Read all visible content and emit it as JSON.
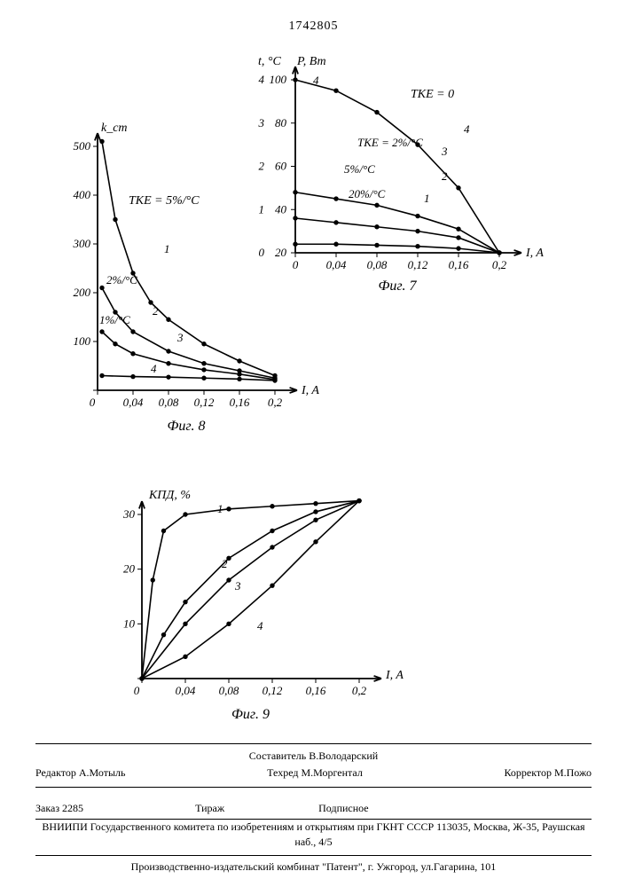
{
  "page_number": "1742805",
  "fig7": {
    "type": "line",
    "ylabel_left": "t, °C",
    "ylabel_right": "P, Вт",
    "xlabel": "I, A",
    "title": "Фиг. 7",
    "xlim": [
      0,
      0.2
    ],
    "ylim_left": [
      0,
      4
    ],
    "ylim_right": [
      20,
      100
    ],
    "xticks": [
      0,
      0.04,
      0.08,
      0.12,
      0.16,
      0.2
    ],
    "yticks_left": [
      "0",
      "1",
      "2",
      "3",
      "4"
    ],
    "yticks_right": [
      20,
      40,
      60,
      80,
      100
    ],
    "line_color": "#000000",
    "background": "#ffffff",
    "annotations": {
      "TKE0": "TKE = 0",
      "TKE2": "TKE = 2%/°C",
      "s5": "5%/°C",
      "s20": "20%/°C",
      "n1": "1",
      "n2": "2",
      "n3": "3",
      "n4a": "4",
      "n4b": "4"
    },
    "series": {
      "s4_top": [
        [
          0,
          100
        ],
        [
          0.04,
          95
        ],
        [
          0.08,
          85
        ],
        [
          0.12,
          70
        ],
        [
          0.16,
          50
        ],
        [
          0.2,
          20
        ]
      ],
      "s3": [
        [
          0,
          48
        ],
        [
          0.04,
          45
        ],
        [
          0.08,
          42
        ],
        [
          0.12,
          37
        ],
        [
          0.16,
          31
        ],
        [
          0.2,
          20
        ]
      ],
      "s2": [
        [
          0,
          36
        ],
        [
          0.04,
          34
        ],
        [
          0.08,
          32
        ],
        [
          0.12,
          30
        ],
        [
          0.16,
          27
        ],
        [
          0.2,
          20
        ]
      ],
      "s1": [
        [
          0,
          24
        ],
        [
          0.04,
          24
        ],
        [
          0.08,
          23.5
        ],
        [
          0.12,
          23
        ],
        [
          0.16,
          22
        ],
        [
          0.2,
          20
        ]
      ]
    }
  },
  "fig8": {
    "type": "line",
    "ylabel": "k_ст",
    "xlabel": "I, A",
    "title": "Фиг. 8",
    "xlim": [
      0,
      0.2
    ],
    "ylim": [
      0,
      500
    ],
    "xticks": [
      0,
      0.04,
      0.08,
      0.12,
      0.16,
      0.2
    ],
    "yticks": [
      0,
      100,
      200,
      300,
      400,
      500
    ],
    "line_color": "#000000",
    "background": "#ffffff",
    "annotations": {
      "TKE5": "TKE = 5%/°C",
      "s2p": "2%/°C",
      "s1p": "1%/°C",
      "n1": "1",
      "n2": "2",
      "n3": "3",
      "n4": "4"
    },
    "series": {
      "s1": [
        [
          0.005,
          510
        ],
        [
          0.02,
          350
        ],
        [
          0.04,
          240
        ],
        [
          0.06,
          180
        ],
        [
          0.08,
          145
        ],
        [
          0.12,
          95
        ],
        [
          0.16,
          60
        ],
        [
          0.2,
          30
        ]
      ],
      "s2": [
        [
          0.005,
          210
        ],
        [
          0.02,
          160
        ],
        [
          0.04,
          120
        ],
        [
          0.08,
          80
        ],
        [
          0.12,
          55
        ],
        [
          0.16,
          40
        ],
        [
          0.2,
          25
        ]
      ],
      "s3": [
        [
          0.005,
          120
        ],
        [
          0.02,
          95
        ],
        [
          0.04,
          75
        ],
        [
          0.08,
          55
        ],
        [
          0.12,
          42
        ],
        [
          0.16,
          33
        ],
        [
          0.2,
          22
        ]
      ],
      "s4": [
        [
          0.005,
          30
        ],
        [
          0.04,
          28
        ],
        [
          0.08,
          27
        ],
        [
          0.12,
          25
        ],
        [
          0.16,
          23
        ],
        [
          0.2,
          20
        ]
      ]
    }
  },
  "fig9": {
    "type": "line",
    "ylabel": "КПД, %",
    "xlabel": "I, A",
    "title": "Фиг. 9",
    "xlim": [
      0,
      0.2
    ],
    "ylim": [
      0,
      30
    ],
    "xticks": [
      0,
      0.04,
      0.08,
      0.12,
      0.16,
      0.2
    ],
    "yticks": [
      0,
      10,
      20,
      30
    ],
    "line_color": "#000000",
    "background": "#ffffff",
    "annotations": {
      "n1": "1",
      "n2": "2",
      "n3": "3",
      "n4": "4"
    },
    "series": {
      "s1": [
        [
          0,
          0
        ],
        [
          0.01,
          18
        ],
        [
          0.02,
          27
        ],
        [
          0.04,
          30
        ],
        [
          0.08,
          31
        ],
        [
          0.12,
          31.5
        ],
        [
          0.16,
          32
        ],
        [
          0.2,
          32.5
        ]
      ],
      "s2": [
        [
          0,
          0
        ],
        [
          0.02,
          8
        ],
        [
          0.04,
          14
        ],
        [
          0.08,
          22
        ],
        [
          0.12,
          27
        ],
        [
          0.16,
          30.5
        ],
        [
          0.2,
          32.5
        ]
      ],
      "s3": [
        [
          0,
          0
        ],
        [
          0.04,
          10
        ],
        [
          0.08,
          18
        ],
        [
          0.12,
          24
        ],
        [
          0.16,
          29
        ],
        [
          0.2,
          32.5
        ]
      ],
      "s4": [
        [
          0,
          0
        ],
        [
          0.04,
          4
        ],
        [
          0.08,
          10
        ],
        [
          0.12,
          17
        ],
        [
          0.16,
          25
        ],
        [
          0.2,
          32.5
        ]
      ]
    }
  },
  "credits": {
    "compiler": "Составитель В.Володарский",
    "editor": "Редактор А.Мотыль",
    "tech": "Техред М.Моргентал",
    "corrector": "Корректор М.Пожо",
    "order": "Заказ 2285",
    "tirazh": "Тираж",
    "subscript": "Подписное",
    "org": "ВНИИПИ Государственного комитета по изобретениям и открытиям при ГКНТ СССР 113035, Москва, Ж-35, Раушская наб., 4/5",
    "publisher": "Производственно-издательский комбинат \"Патент\", г. Ужгород, ул.Гагарина, 101"
  }
}
